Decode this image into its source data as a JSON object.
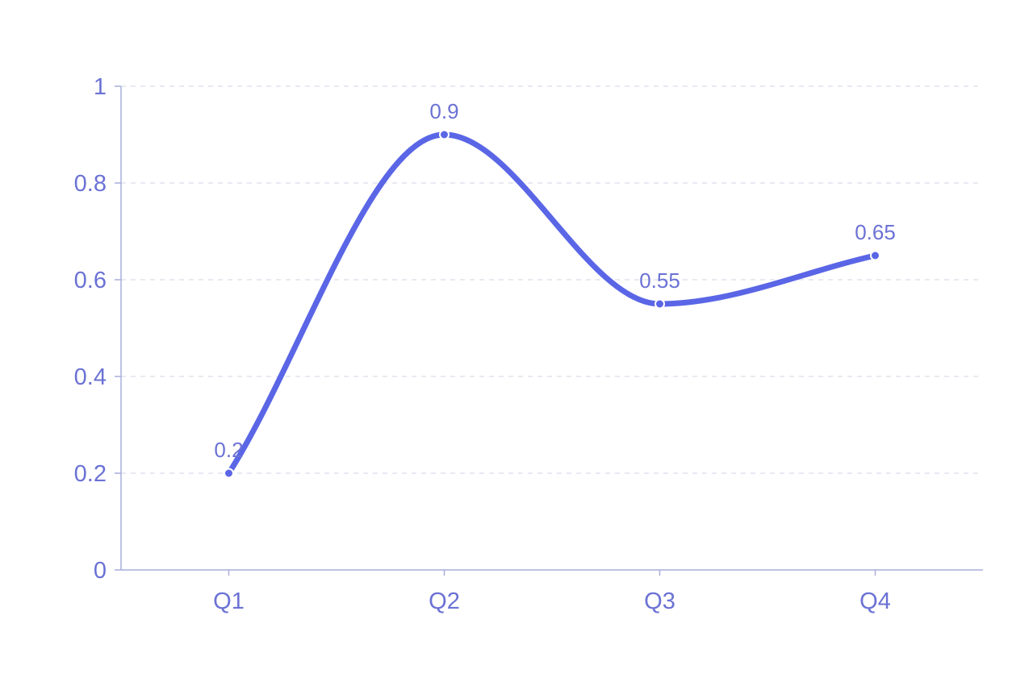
{
  "chart_data": {
    "type": "line",
    "categories": [
      "Q1",
      "Q2",
      "Q3",
      "Q4"
    ],
    "values": [
      0.2,
      0.9,
      0.55,
      0.65
    ],
    "data_labels": [
      "0.2",
      "0.9",
      "0.55",
      "0.65"
    ],
    "title": "",
    "xlabel": "",
    "ylabel": "",
    "ylim": [
      0,
      1
    ],
    "yticks": [
      "0",
      "0.2",
      "0.4",
      "0.6",
      "0.8",
      "1"
    ],
    "grid": true,
    "curve": "smooth",
    "colors": {
      "line": "#5a66e6",
      "text": "#6b72d4",
      "axis": "#a9aedb",
      "grid": "#dfe4ee"
    }
  }
}
